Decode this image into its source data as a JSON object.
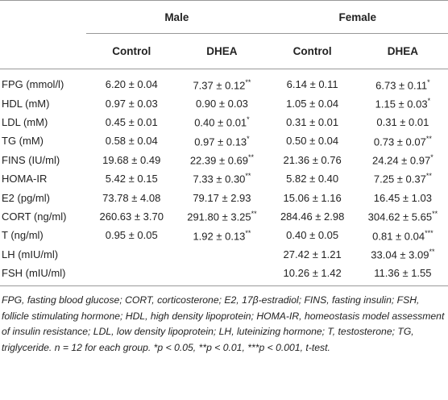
{
  "header": {
    "groups": [
      "Male",
      "Female"
    ],
    "columns": [
      "Control",
      "DHEA",
      "Control",
      "DHEA"
    ]
  },
  "table": {
    "rows": [
      [
        "FPG (mmol/l)",
        "6.20 ± 0.04",
        {
          "text": "7.37 ± 0.12",
          "sig": "**"
        },
        "6.14 ± 0.11",
        {
          "text": "6.73 ± 0.11",
          "sig": "*"
        }
      ],
      [
        "HDL (mM)",
        "0.97 ± 0.03",
        "0.90 ± 0.03",
        "1.05 ± 0.04",
        {
          "text": "1.15 ± 0.03",
          "sig": "*"
        }
      ],
      [
        "LDL (mM)",
        "0.45 ± 0.01",
        {
          "text": "0.40 ± 0.01",
          "sig": "*"
        },
        "0.31 ± 0.01",
        "0.31 ± 0.01"
      ],
      [
        "TG (mM)",
        "0.58 ± 0.04",
        {
          "text": "0.97 ± 0.13",
          "sig": "*"
        },
        "0.50 ± 0.04",
        {
          "text": "0.73 ± 0.07",
          "sig": "**"
        }
      ],
      [
        "FINS (IU/ml)",
        "19.68 ± 0.49",
        {
          "text": "22.39 ± 0.69",
          "sig": "**"
        },
        "21.36 ± 0.76",
        {
          "text": "24.24 ± 0.97",
          "sig": "*"
        }
      ],
      [
        "HOMA-IR",
        "5.42 ± 0.15",
        {
          "text": "7.33 ± 0.30",
          "sig": "**"
        },
        "5.82 ± 0.40",
        {
          "text": "7.25 ± 0.37",
          "sig": "**"
        }
      ],
      [
        "E2 (pg/ml)",
        "73.78 ± 4.08",
        "79.17 ± 2.93",
        "15.06 ± 1.16",
        "16.45 ± 1.03"
      ],
      [
        "CORT (ng/ml)",
        "260.63 ± 3.70",
        {
          "text": "291.80 ± 3.25",
          "sig": "**"
        },
        "284.46 ± 2.98",
        {
          "text": "304.62 ± 5.65",
          "sig": "**"
        }
      ],
      [
        "T (ng/ml)",
        "0.95 ± 0.05",
        {
          "text": "1.92 ± 0.13",
          "sig": "**"
        },
        "0.40 ± 0.05",
        {
          "text": "0.81 ± 0.04",
          "sig": "***"
        }
      ],
      [
        "LH (mIU/ml)",
        null,
        null,
        "27.42 ± 1.21",
        {
          "text": "33.04 ± 3.09",
          "sig": "**"
        }
      ],
      [
        "FSH (mIU/ml)",
        null,
        null,
        "10.26 ± 1.42",
        "11.36 ± 1.55"
      ]
    ]
  },
  "footnote": "FPG, fasting blood glucose; CORT, corticosterone; E2, 17β-estradiol; FINS, fasting insulin; FSH, follicle stimulating hormone; HDL, high density lipoprotein; HOMA-IR, homeostasis model assessment of insulin resistance; LDL, low density lipoprotein; LH, luteinizing hormone; T, testosterone; TG, triglyceride. n = 12 for each group. *p < 0.05, **p < 0.01, ***p < 0.001, t-test."
}
